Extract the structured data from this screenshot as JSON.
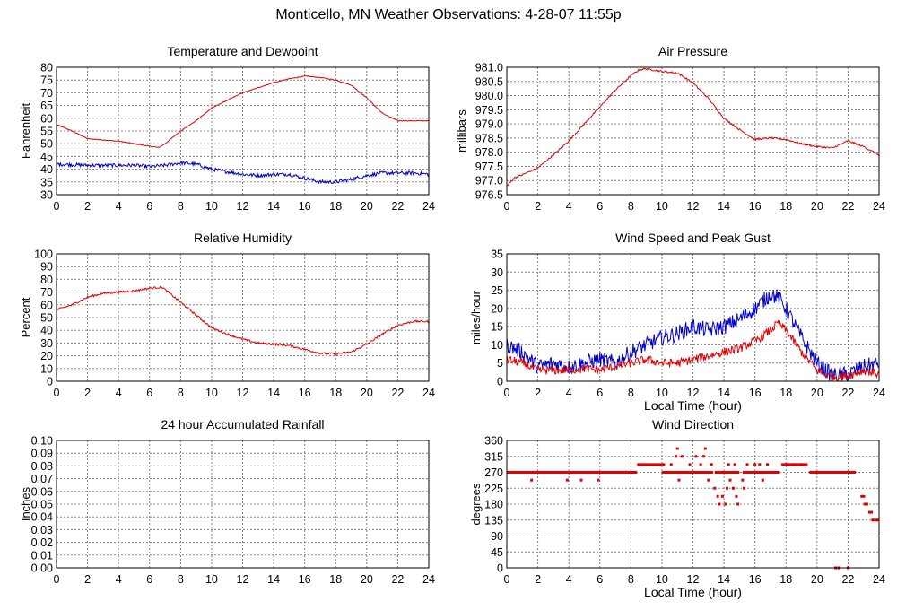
{
  "page": {
    "title": "Monticello, MN Weather Observations: 4-28-07 11:55p"
  },
  "colors": {
    "red": "#e00000",
    "blue": "#0000c8",
    "grid": "#808080",
    "axis": "#000000"
  },
  "chart_data": [
    {
      "id": "temp",
      "type": "line",
      "title": "Temperature and Dewpoint",
      "xlabel": "",
      "ylabel": "Fahrenheit",
      "xlim": [
        0,
        24
      ],
      "ylim": [
        30,
        80
      ],
      "xticks": [
        "0",
        "2",
        "4",
        "6",
        "8",
        "10",
        "12",
        "14",
        "16",
        "18",
        "20",
        "22",
        "24"
      ],
      "yticks": [
        "30",
        "35",
        "40",
        "45",
        "50",
        "55",
        "60",
        "65",
        "70",
        "75",
        "80"
      ],
      "series": [
        {
          "name": "Temperature",
          "color": "#e00000",
          "noise": 0.15,
          "x": [
            0,
            1,
            2,
            3,
            4,
            5,
            6,
            6.6,
            7,
            8,
            9,
            10,
            11,
            12,
            13,
            14,
            15,
            16,
            17,
            18,
            19,
            20,
            21,
            22,
            23,
            24
          ],
          "y": [
            57.5,
            55,
            52,
            51.5,
            51,
            50,
            49,
            48.5,
            50,
            55,
            59,
            64,
            67,
            70,
            72,
            74,
            75.5,
            76.5,
            76,
            75,
            73,
            68,
            62,
            59,
            59,
            59
          ]
        },
        {
          "name": "Dewpoint",
          "color": "#0000c8",
          "noise": 0.7,
          "x": [
            0,
            2,
            4,
            5,
            6,
            7,
            8,
            9,
            10,
            11,
            12,
            13,
            14,
            15,
            16,
            17,
            18,
            19,
            20,
            21,
            22,
            23,
            24
          ],
          "y": [
            42,
            41.5,
            41.5,
            41.5,
            41,
            41.5,
            42.5,
            42,
            40,
            39,
            38,
            37.5,
            38,
            38,
            36.5,
            35,
            35,
            36,
            37.5,
            38.5,
            38.5,
            38.5,
            38
          ]
        }
      ]
    },
    {
      "id": "pressure",
      "type": "line",
      "title": "Air Pressure",
      "xlabel": "",
      "ylabel": "millibars",
      "xlim": [
        0,
        24
      ],
      "ylim": [
        976.5,
        981.0
      ],
      "xticks": [
        "0",
        "2",
        "4",
        "6",
        "8",
        "10",
        "12",
        "14",
        "16",
        "18",
        "20",
        "22",
        "24"
      ],
      "yticks": [
        "976.5",
        "977.0",
        "977.5",
        "978.0",
        "978.5",
        "979.0",
        "979.5",
        "980.0",
        "980.5",
        "981.0"
      ],
      "series": [
        {
          "name": "Pressure",
          "color": "#e00000",
          "noise": 0.03,
          "x": [
            0,
            0.5,
            1,
            2,
            3,
            4,
            5,
            6,
            7,
            8,
            8.5,
            9,
            10,
            11,
            12,
            13,
            14,
            15,
            16,
            17,
            18,
            19,
            20,
            21,
            22,
            23,
            24
          ],
          "y": [
            976.8,
            977.1,
            977.2,
            977.45,
            977.9,
            978.4,
            979.0,
            979.6,
            980.2,
            980.7,
            980.9,
            980.95,
            980.85,
            980.8,
            980.45,
            979.9,
            979.2,
            978.8,
            978.45,
            978.5,
            978.45,
            978.3,
            978.2,
            978.15,
            978.4,
            978.2,
            977.9
          ]
        }
      ]
    },
    {
      "id": "humidity",
      "type": "line",
      "title": "Relative Humidity",
      "xlabel": "",
      "ylabel": "Percent",
      "xlim": [
        0,
        24
      ],
      "ylim": [
        0,
        100
      ],
      "xticks": [
        "0",
        "2",
        "4",
        "6",
        "8",
        "10",
        "12",
        "14",
        "16",
        "18",
        "20",
        "22",
        "24"
      ],
      "yticks": [
        "0",
        "10",
        "20",
        "30",
        "40",
        "50",
        "60",
        "70",
        "80",
        "90",
        "100"
      ],
      "series": [
        {
          "name": "Relative Humidity",
          "color": "#e00000",
          "noise": 0.8,
          "x": [
            0,
            1,
            2,
            3,
            4,
            5,
            6,
            6.8,
            7,
            8,
            9,
            10,
            11,
            12,
            13,
            14,
            15,
            16,
            17,
            18,
            19,
            20,
            21,
            22,
            23,
            24
          ],
          "y": [
            56,
            60,
            66,
            69,
            70,
            71,
            73,
            74,
            72,
            62,
            52,
            42,
            37,
            33,
            30,
            29,
            28,
            25,
            22,
            21.5,
            23,
            29,
            37,
            44,
            47,
            47
          ]
        }
      ]
    },
    {
      "id": "wind",
      "type": "line",
      "title": "Wind Speed and Peak Gust",
      "xlabel": "Local Time (hour)",
      "ylabel": "miles/hour",
      "xlim": [
        0,
        24
      ],
      "ylim": [
        0,
        35
      ],
      "xticks": [
        "0",
        "2",
        "4",
        "6",
        "8",
        "10",
        "12",
        "14",
        "16",
        "18",
        "20",
        "22",
        "24"
      ],
      "yticks": [
        "0",
        "5",
        "10",
        "15",
        "20",
        "25",
        "30",
        "35"
      ],
      "series": [
        {
          "name": "Peak Gust",
          "color": "#0000c8",
          "noise": 2.2,
          "x": [
            0,
            1,
            2,
            3,
            4,
            5,
            6,
            7,
            8,
            9,
            10,
            11,
            12,
            13,
            14,
            15,
            16,
            17,
            17.5,
            18,
            19,
            20,
            21,
            22,
            23,
            24
          ],
          "y": [
            10,
            8,
            4,
            5,
            4,
            5,
            6,
            5,
            8,
            10,
            12,
            13,
            15,
            14,
            15,
            17,
            20,
            24,
            23,
            20,
            12,
            5,
            1.5,
            2,
            4,
            5
          ]
        },
        {
          "name": "Wind Speed",
          "color": "#e00000",
          "noise": 1.2,
          "x": [
            0,
            1,
            2,
            3,
            4,
            5,
            6,
            7,
            8,
            9,
            10,
            11,
            12,
            13,
            14,
            15,
            16,
            17,
            17.5,
            18,
            19,
            20,
            21,
            22,
            23,
            24
          ],
          "y": [
            6,
            5,
            3,
            3,
            3,
            3.5,
            3,
            4,
            5,
            6,
            5,
            5,
            6,
            7,
            8,
            9,
            11,
            14,
            16,
            14,
            8,
            3,
            1,
            1.5,
            3,
            2
          ]
        }
      ]
    },
    {
      "id": "rain",
      "type": "line",
      "title": "24 hour Accumulated Rainfall",
      "xlabel": "",
      "ylabel": "Inches",
      "xlim": [
        0,
        24
      ],
      "ylim": [
        0,
        0.1
      ],
      "xticks": [
        "0",
        "2",
        "4",
        "6",
        "8",
        "10",
        "12",
        "14",
        "16",
        "18",
        "20",
        "22",
        "24"
      ],
      "yticks": [
        "0.00",
        "0.01",
        "0.02",
        "0.03",
        "0.04",
        "0.05",
        "0.06",
        "0.07",
        "0.08",
        "0.09",
        "0.10"
      ],
      "series": [
        {
          "name": "Rainfall",
          "color": "#e00000",
          "noise": 0,
          "x": [
            0,
            24
          ],
          "y": [
            0,
            0
          ]
        }
      ]
    },
    {
      "id": "direction",
      "type": "scatter",
      "title": "Wind Direction",
      "xlabel": "Local Time (hour)",
      "ylabel": "degrees",
      "xlim": [
        0,
        24
      ],
      "ylim": [
        0,
        360
      ],
      "xticks": [
        "0",
        "2",
        "4",
        "6",
        "8",
        "10",
        "12",
        "14",
        "16",
        "18",
        "20",
        "22",
        "24"
      ],
      "yticks": [
        "0",
        "45",
        "90",
        "135",
        "180",
        "225",
        "270",
        "315",
        "360"
      ],
      "series": [
        {
          "name": "Wind Direction",
          "color": "#e00000",
          "segments": [
            [
              0,
              8.4,
              270
            ],
            [
              8.4,
              10.2,
              292
            ],
            [
              10,
              13.3,
              270
            ],
            [
              13.4,
              15,
              270
            ],
            [
              15.2,
              17.6,
              270
            ],
            [
              17.7,
              19.4,
              292
            ],
            [
              19.5,
              22.5,
              270
            ],
            [
              22.8,
              23.1,
              202
            ],
            [
              23.0,
              23.3,
              180
            ],
            [
              23.3,
              23.6,
              157
            ],
            [
              23.5,
              24,
              135
            ]
          ],
          "points": [
            [
              1.6,
              248
            ],
            [
              3.9,
              248
            ],
            [
              4.8,
              248
            ],
            [
              5.9,
              248
            ],
            [
              10.6,
              292
            ],
            [
              10.9,
              315
            ],
            [
              11.0,
              337
            ],
            [
              11.3,
              315
            ],
            [
              11.1,
              248
            ],
            [
              11.8,
              292
            ],
            [
              12.2,
              315
            ],
            [
              12.5,
              292
            ],
            [
              12.7,
              315
            ],
            [
              12.8,
              337
            ],
            [
              13.0,
              248
            ],
            [
              13.2,
              292
            ],
            [
              13.4,
              225
            ],
            [
              13.6,
              202
            ],
            [
              13.7,
              180
            ],
            [
              13.9,
              202
            ],
            [
              14.1,
              180
            ],
            [
              14.2,
              225
            ],
            [
              14.3,
              292
            ],
            [
              14.4,
              248
            ],
            [
              14.6,
              225
            ],
            [
              14.7,
              292
            ],
            [
              14.8,
              202
            ],
            [
              14.9,
              180
            ],
            [
              15.2,
              248
            ],
            [
              15.3,
              225
            ],
            [
              15.5,
              292
            ],
            [
              15.7,
              270
            ],
            [
              16.0,
              292
            ],
            [
              16.3,
              292
            ],
            [
              16.5,
              248
            ],
            [
              16.8,
              292
            ],
            [
              17.2,
              270
            ],
            [
              18.0,
              292
            ],
            [
              18.5,
              292
            ],
            [
              19.0,
              292
            ],
            [
              21.2,
              0
            ],
            [
              21.4,
              0
            ],
            [
              22.0,
              0
            ]
          ]
        }
      ]
    }
  ]
}
